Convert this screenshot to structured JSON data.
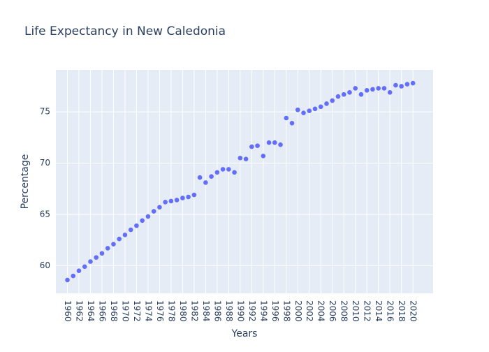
{
  "chart_data": {
    "type": "scatter",
    "title": "Life Expectancy in New Caledonia",
    "xlabel": "Years",
    "ylabel": "Percentage",
    "xlim": [
      1958,
      2023.5
    ],
    "ylim": [
      57.3,
      79.1
    ],
    "xticks": [
      1960,
      1962,
      1964,
      1966,
      1968,
      1970,
      1972,
      1974,
      1976,
      1978,
      1980,
      1982,
      1984,
      1986,
      1988,
      1990,
      1992,
      1994,
      1996,
      1998,
      2000,
      2002,
      2004,
      2006,
      2008,
      2010,
      2012,
      2014,
      2016,
      2018,
      2020
    ],
    "yticks": [
      60,
      65,
      70,
      75
    ],
    "grid": true,
    "colors": {
      "marker": "#636efa",
      "plot_bg": "#e5ecf6",
      "grid": "#ffffff",
      "text": "#2a3f5f"
    },
    "series": [
      {
        "x": [
          1960,
          1961,
          1962,
          1963,
          1964,
          1965,
          1966,
          1967,
          1968,
          1969,
          1970,
          1971,
          1972,
          1973,
          1974,
          1975,
          1976,
          1977,
          1978,
          1979,
          1980,
          1981,
          1982,
          1983,
          1984,
          1985,
          1986,
          1987,
          1988,
          1989,
          1990,
          1991,
          1992,
          1993,
          1994,
          1995,
          1996,
          1997,
          1998,
          1999,
          2000,
          2001,
          2002,
          2003,
          2004,
          2005,
          2006,
          2007,
          2008,
          2009,
          2010,
          2011,
          2012,
          2013,
          2014,
          2015,
          2016,
          2017,
          2018,
          2019,
          2020
        ],
        "y": [
          58.6,
          59.0,
          59.5,
          59.9,
          60.4,
          60.8,
          61.2,
          61.7,
          62.1,
          62.6,
          63.0,
          63.5,
          63.9,
          64.4,
          64.8,
          65.3,
          65.7,
          66.2,
          66.3,
          66.4,
          66.6,
          66.7,
          66.9,
          68.6,
          68.1,
          68.7,
          69.1,
          69.4,
          69.4,
          69.1,
          70.5,
          70.4,
          71.6,
          71.7,
          70.7,
          72.0,
          72.0,
          71.8,
          74.4,
          73.9,
          75.2,
          74.9,
          75.1,
          75.3,
          75.5,
          75.8,
          76.1,
          76.5,
          76.7,
          76.9,
          77.3,
          76.7,
          77.1,
          77.2,
          77.3,
          77.3,
          76.9,
          77.6,
          77.5,
          77.7,
          77.8
        ]
      }
    ]
  }
}
